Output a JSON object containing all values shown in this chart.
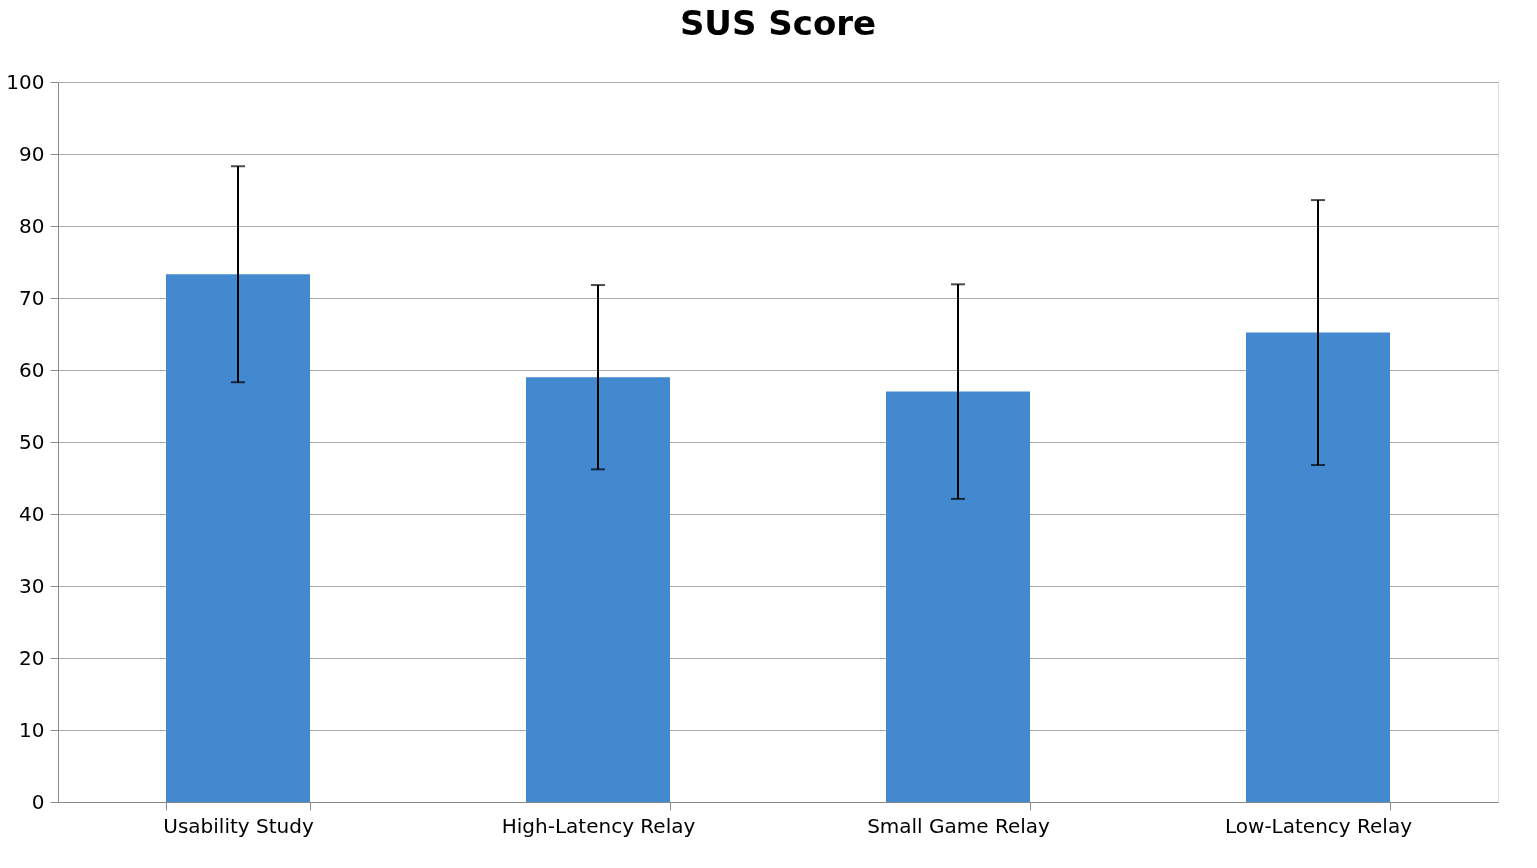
{
  "chart_data": {
    "type": "bar",
    "title": "SUS Score",
    "categories": [
      "Usability Study",
      "High-Latency Relay",
      "Small Game Relay",
      "Low-Latency Relay"
    ],
    "values": [
      73.3,
      59.0,
      57.0,
      65.2
    ],
    "errors": [
      15.0,
      12.8,
      14.9,
      18.4
    ],
    "color": "#4389cf",
    "ylim": [
      0,
      100
    ],
    "yticks": [
      0,
      10,
      20,
      30,
      40,
      50,
      60,
      70,
      80,
      90,
      100
    ],
    "grid": "y"
  }
}
